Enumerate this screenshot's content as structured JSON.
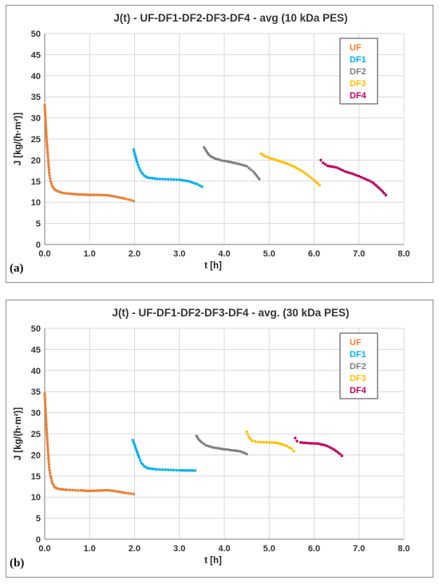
{
  "chart_data": [
    {
      "type": "scatter",
      "panel_label": "(a)",
      "title": "J(t) - UF-DF1-DF2-DF3-DF4 - avg (10 kDa PES)",
      "xlabel": "t [h]",
      "ylabel": "J [kg/(h·m²)]",
      "xlim": [
        0,
        8
      ],
      "ylim": [
        0,
        50
      ],
      "xticks": [
        "0.0",
        "1.0",
        "2.0",
        "3.0",
        "4.0",
        "5.0",
        "6.0",
        "7.0",
        "8.0"
      ],
      "yticks": [
        "0",
        "5",
        "10",
        "15",
        "20",
        "25",
        "30",
        "35",
        "40",
        "45",
        "50"
      ],
      "grid": true,
      "legend_position": "top-right",
      "series": [
        {
          "name": "UF",
          "color": "#ED7D31",
          "points": [
            [
              0.0,
              33
            ],
            [
              0.02,
              29.5
            ],
            [
              0.04,
              25.5
            ],
            [
              0.06,
              22.5
            ],
            [
              0.08,
              20
            ],
            [
              0.1,
              17
            ],
            [
              0.13,
              15
            ],
            [
              0.17,
              13.8
            ],
            [
              0.22,
              13
            ],
            [
              0.3,
              12.5
            ],
            [
              0.4,
              12.2
            ],
            [
              0.6,
              12
            ],
            [
              0.8,
              11.9
            ],
            [
              1.0,
              11.8
            ],
            [
              1.2,
              11.8
            ],
            [
              1.4,
              11.7
            ],
            [
              1.6,
              11.3
            ],
            [
              1.8,
              10.8
            ],
            [
              1.98,
              10.3
            ]
          ]
        },
        {
          "name": "DF1",
          "color": "#00B0F0",
          "points": [
            [
              1.98,
              22.5
            ],
            [
              2.02,
              21
            ],
            [
              2.06,
              19.5
            ],
            [
              2.1,
              18.3
            ],
            [
              2.15,
              17.2
            ],
            [
              2.22,
              16.3
            ],
            [
              2.3,
              15.8
            ],
            [
              2.5,
              15.5
            ],
            [
              2.75,
              15.4
            ],
            [
              3.0,
              15.3
            ],
            [
              3.2,
              15
            ],
            [
              3.4,
              14.3
            ],
            [
              3.5,
              13.7
            ]
          ]
        },
        {
          "name": "DF2",
          "color": "#7F7F7F",
          "points": [
            [
              3.55,
              23
            ],
            [
              3.6,
              22.2
            ],
            [
              3.65,
              21.4
            ],
            [
              3.72,
              20.8
            ],
            [
              3.8,
              20.4
            ],
            [
              3.95,
              19.9
            ],
            [
              4.1,
              19.6
            ],
            [
              4.3,
              19.1
            ],
            [
              4.5,
              18.5
            ],
            [
              4.65,
              17.2
            ],
            [
              4.78,
              15.5
            ]
          ]
        },
        {
          "name": "DF3",
          "color": "#FFC000",
          "points": [
            [
              4.82,
              21.5
            ],
            [
              4.9,
              21
            ],
            [
              5.0,
              20.6
            ],
            [
              5.2,
              19.9
            ],
            [
              5.4,
              19.2
            ],
            [
              5.6,
              18.2
            ],
            [
              5.8,
              16.9
            ],
            [
              6.0,
              15.2
            ],
            [
              6.12,
              14
            ]
          ]
        },
        {
          "name": "DF4",
          "color": "#C00060",
          "points": [
            [
              6.15,
              20
            ],
            [
              6.2,
              19.4
            ],
            [
              6.3,
              18.7
            ],
            [
              6.5,
              18.3
            ],
            [
              6.7,
              17.3
            ],
            [
              6.9,
              16.6
            ],
            [
              7.1,
              15.7
            ],
            [
              7.3,
              14.7
            ],
            [
              7.45,
              13.3
            ],
            [
              7.6,
              11.7
            ]
          ]
        }
      ]
    },
    {
      "type": "scatter",
      "panel_label": "(b)",
      "title": "J(t) - UF-DF1-DF2-DF3-DF4 - avg. (30 kDa PES)",
      "xlabel": "t [h]",
      "ylabel": "J [kg/(h·m²)]",
      "xlim": [
        0,
        8
      ],
      "ylim": [
        0,
        50
      ],
      "xticks": [
        "0.0",
        "1.0",
        "2.0",
        "3.0",
        "4.0",
        "5.0",
        "6.0",
        "7.0",
        "8.0"
      ],
      "yticks": [
        "0",
        "5",
        "10",
        "15",
        "20",
        "25",
        "30",
        "35",
        "40",
        "45",
        "50"
      ],
      "grid": true,
      "legend_position": "top-right",
      "series": [
        {
          "name": "UF",
          "color": "#ED7D31",
          "points": [
            [
              0.0,
              34.5
            ],
            [
              0.02,
              30.5
            ],
            [
              0.04,
              26.5
            ],
            [
              0.06,
              23
            ],
            [
              0.08,
              20
            ],
            [
              0.1,
              17
            ],
            [
              0.13,
              15
            ],
            [
              0.17,
              13.3
            ],
            [
              0.22,
              12.3
            ],
            [
              0.3,
              11.9
            ],
            [
              0.5,
              11.7
            ],
            [
              0.8,
              11.6
            ],
            [
              1.0,
              11.5
            ],
            [
              1.2,
              11.6
            ],
            [
              1.4,
              11.7
            ],
            [
              1.6,
              11.4
            ],
            [
              1.8,
              11
            ],
            [
              1.98,
              10.7
            ]
          ]
        },
        {
          "name": "DF1",
          "color": "#00B0F0",
          "points": [
            [
              1.96,
              23.5
            ],
            [
              2.0,
              22.5
            ],
            [
              2.05,
              21
            ],
            [
              2.1,
              19.5
            ],
            [
              2.15,
              18.2
            ],
            [
              2.22,
              17.3
            ],
            [
              2.3,
              16.8
            ],
            [
              2.5,
              16.5
            ],
            [
              2.75,
              16.4
            ],
            [
              3.0,
              16.3
            ],
            [
              3.2,
              16.3
            ],
            [
              3.35,
              16.3
            ]
          ]
        },
        {
          "name": "DF2",
          "color": "#7F7F7F",
          "points": [
            [
              3.38,
              24.5
            ],
            [
              3.43,
              23.7
            ],
            [
              3.5,
              23
            ],
            [
              3.6,
              22.3
            ],
            [
              3.75,
              21.8
            ],
            [
              3.95,
              21.4
            ],
            [
              4.15,
              21.1
            ],
            [
              4.35,
              20.8
            ],
            [
              4.5,
              20.2
            ]
          ]
        },
        {
          "name": "DF3",
          "color": "#FFC000",
          "points": [
            [
              4.5,
              25.5
            ],
            [
              4.55,
              24.2
            ],
            [
              4.62,
              23.4
            ],
            [
              4.75,
              23.1
            ],
            [
              5.0,
              23
            ],
            [
              5.2,
              22.8
            ],
            [
              5.35,
              22.3
            ],
            [
              5.5,
              21.4
            ],
            [
              5.55,
              20.9
            ]
          ]
        },
        {
          "name": "DF4",
          "color": "#C00060",
          "points": [
            [
              5.58,
              24
            ],
            [
              5.62,
              23.3
            ],
            [
              5.7,
              23
            ],
            [
              5.9,
              22.8
            ],
            [
              6.1,
              22.7
            ],
            [
              6.3,
              22.1
            ],
            [
              6.45,
              21.2
            ],
            [
              6.62,
              19.8
            ]
          ]
        }
      ]
    }
  ]
}
